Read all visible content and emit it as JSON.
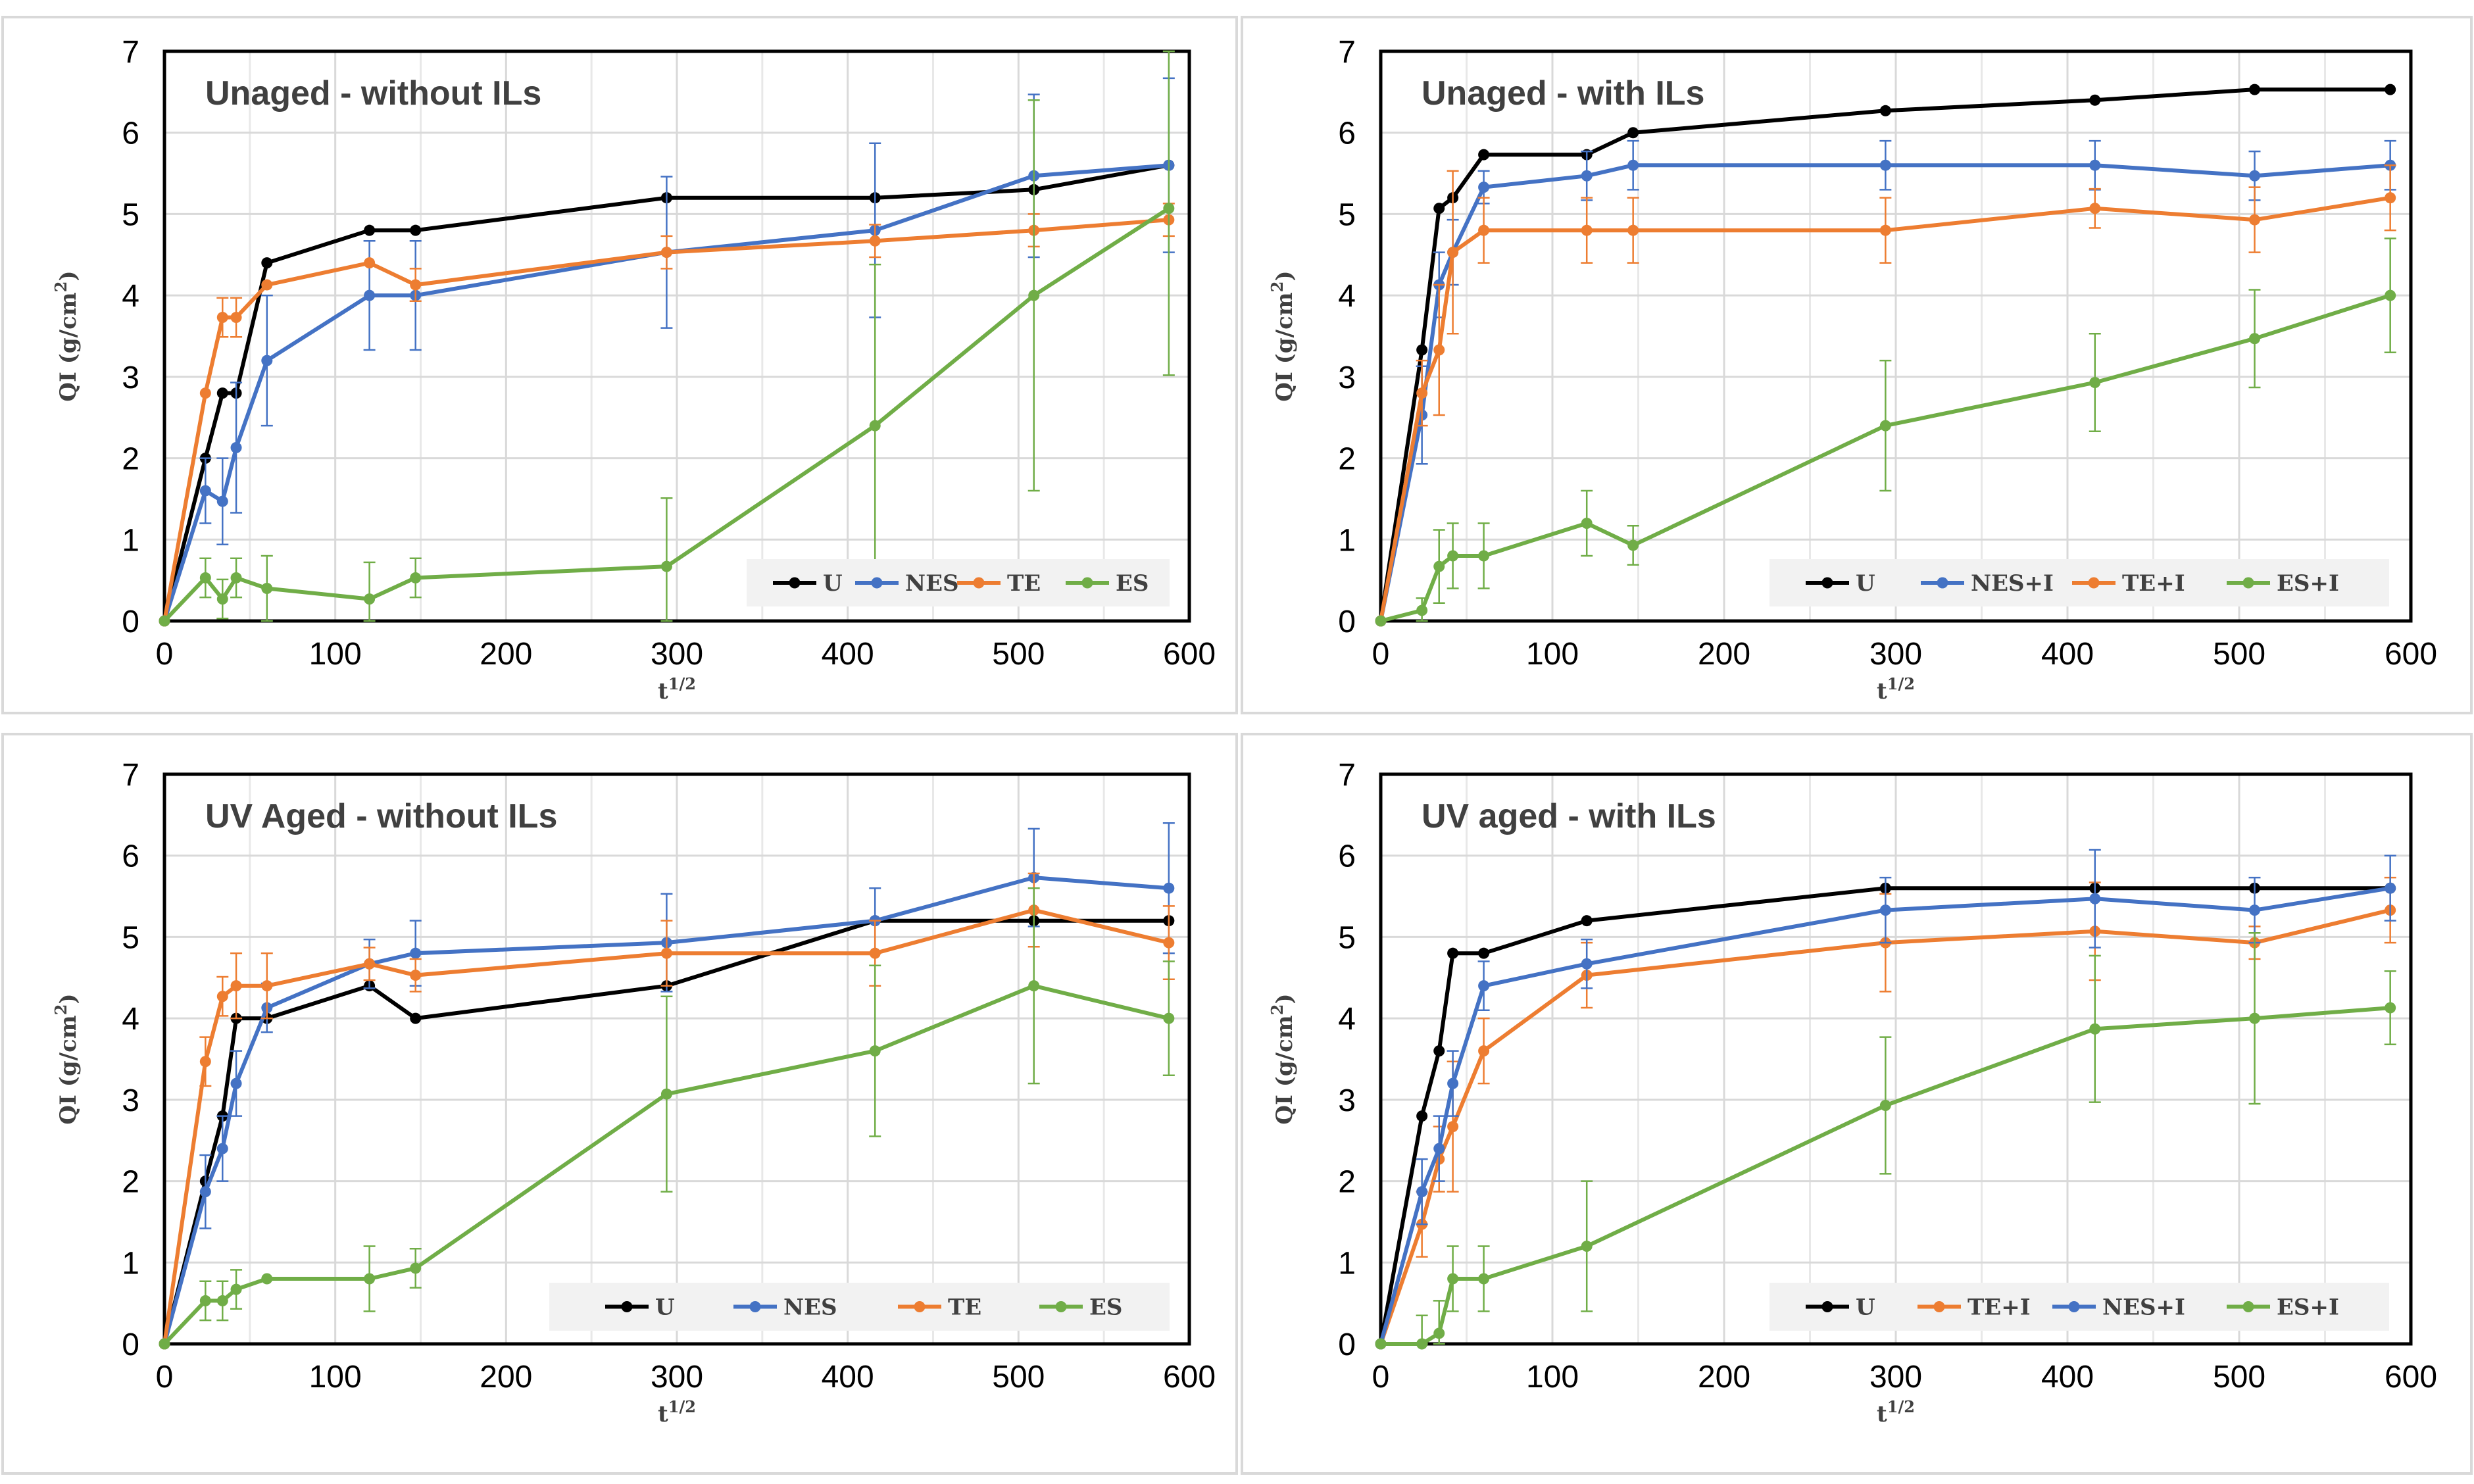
{
  "chart_data": [
    {
      "type": "line",
      "title": "Unaged - without ILs",
      "xlabel": "t",
      "xlabel_sup": "1/2",
      "ylabel": "QI (g/cm",
      "ylabel_sup": "2",
      "ylabel_end": ")",
      "xlim": [
        0,
        600
      ],
      "ylim": [
        0,
        7
      ],
      "x_ticks": [
        "0",
        "100",
        "200",
        "300",
        "400",
        "500",
        "600"
      ],
      "y_ticks": [
        "0",
        "1",
        "2",
        "3",
        "4",
        "5",
        "6",
        "7"
      ],
      "legend_position": "bottom-right",
      "series": [
        {
          "name": "U",
          "color": "#000000",
          "x": [
            0,
            24,
            34,
            42,
            60,
            120,
            147,
            294,
            416,
            509,
            588
          ],
          "y": [
            0,
            2.0,
            2.8,
            2.8,
            4.4,
            4.8,
            4.8,
            5.2,
            5.2,
            5.3,
            5.6
          ],
          "err": [
            0,
            0,
            0,
            0,
            0,
            0,
            0,
            0,
            0,
            0,
            0
          ]
        },
        {
          "name": "NES",
          "color": "#4472c4",
          "x": [
            0,
            24,
            34,
            42,
            60,
            120,
            147,
            294,
            416,
            509,
            588
          ],
          "y": [
            0,
            1.6,
            1.47,
            2.13,
            3.2,
            4.0,
            4.0,
            4.53,
            4.8,
            5.47,
            5.6
          ],
          "err": [
            0,
            0.4,
            0.53,
            0.8,
            0.8,
            0.67,
            0.67,
            0.93,
            1.07,
            1.0,
            1.07
          ]
        },
        {
          "name": "TE",
          "color": "#ed7d31",
          "x": [
            0,
            24,
            34,
            42,
            60,
            120,
            147,
            294,
            416,
            509,
            588
          ],
          "y": [
            0,
            2.8,
            3.73,
            3.73,
            4.13,
            4.4,
            4.13,
            4.53,
            4.67,
            4.8,
            4.93
          ],
          "err": [
            0,
            0,
            0.24,
            0.24,
            0,
            0,
            0.2,
            0.2,
            0.2,
            0.2,
            0.2
          ]
        },
        {
          "name": "ES",
          "color": "#70ad47",
          "x": [
            0,
            24,
            34,
            42,
            60,
            120,
            147,
            294,
            416,
            509,
            588
          ],
          "y": [
            0,
            0.53,
            0.27,
            0.53,
            0.4,
            0.27,
            0.53,
            0.67,
            2.4,
            4.0,
            5.07
          ],
          "err": [
            0,
            0.24,
            0.24,
            0.24,
            0.4,
            0.45,
            0.24,
            0.84,
            1.98,
            2.4,
            2.05
          ]
        }
      ]
    },
    {
      "type": "line",
      "title": "Unaged - with ILs",
      "xlabel": "t",
      "xlabel_sup": "1/2",
      "ylabel": "QI (g/cm",
      "ylabel_sup": "2",
      "ylabel_end": ")",
      "xlim": [
        0,
        600
      ],
      "ylim": [
        0,
        7
      ],
      "x_ticks": [
        "0",
        "100",
        "200",
        "300",
        "400",
        "500",
        "600"
      ],
      "y_ticks": [
        "0",
        "1",
        "2",
        "3",
        "4",
        "5",
        "6",
        "7"
      ],
      "legend_position": "bottom-right",
      "series": [
        {
          "name": "U",
          "color": "#000000",
          "x": [
            0,
            24,
            34,
            42,
            60,
            120,
            147,
            294,
            416,
            509,
            588
          ],
          "y": [
            0,
            3.33,
            5.07,
            5.2,
            5.73,
            5.73,
            6.0,
            6.27,
            6.4,
            6.53,
            6.53
          ],
          "err": [
            0,
            0,
            0,
            0,
            0,
            0,
            0,
            0,
            0,
            0,
            0
          ]
        },
        {
          "name": "NES+I",
          "color": "#4472c4",
          "x": [
            0,
            24,
            34,
            42,
            60,
            120,
            147,
            294,
            416,
            509,
            588
          ],
          "y": [
            0,
            2.53,
            4.13,
            4.53,
            5.33,
            5.47,
            5.6,
            5.6,
            5.6,
            5.47,
            5.6
          ],
          "err": [
            0,
            0.6,
            0.4,
            0.4,
            0.2,
            0.3,
            0.3,
            0.3,
            0.3,
            0.3,
            0.3
          ]
        },
        {
          "name": "TE+I",
          "color": "#ed7d31",
          "x": [
            0,
            24,
            34,
            42,
            60,
            120,
            147,
            294,
            416,
            509,
            588
          ],
          "y": [
            0,
            2.8,
            3.33,
            4.53,
            4.8,
            4.8,
            4.8,
            4.8,
            5.07,
            4.93,
            5.2
          ],
          "err": [
            0,
            0.4,
            0.8,
            1.0,
            0.4,
            0.4,
            0.4,
            0.4,
            0.24,
            0.4,
            0.4
          ]
        },
        {
          "name": "ES+I",
          "color": "#70ad47",
          "x": [
            0,
            24,
            34,
            42,
            60,
            120,
            147,
            294,
            416,
            509,
            588
          ],
          "y": [
            0,
            0.13,
            0.67,
            0.8,
            0.8,
            1.2,
            0.93,
            2.4,
            2.93,
            3.47,
            4.0
          ],
          "err": [
            0,
            0.15,
            0.45,
            0.4,
            0.4,
            0.4,
            0.24,
            0.8,
            0.6,
            0.6,
            0.7
          ]
        }
      ]
    },
    {
      "type": "line",
      "title": "UV Aged - without ILs",
      "xlabel": "t",
      "xlabel_sup": "1/2",
      "ylabel": "QI (g/cm",
      "ylabel_sup": "2",
      "ylabel_end": ")",
      "xlim": [
        0,
        600
      ],
      "ylim": [
        0,
        7
      ],
      "x_ticks": [
        "0",
        "100",
        "200",
        "300",
        "400",
        "500",
        "600"
      ],
      "y_ticks": [
        "0",
        "1",
        "2",
        "3",
        "4",
        "5",
        "6",
        "7"
      ],
      "legend_position": "bottom",
      "series": [
        {
          "name": "U",
          "color": "#000000",
          "x": [
            0,
            24,
            34,
            42,
            60,
            120,
            147,
            294,
            416,
            509,
            588
          ],
          "y": [
            0,
            2.0,
            2.8,
            4.0,
            4.0,
            4.4,
            4.0,
            4.4,
            5.2,
            5.2,
            5.2
          ],
          "err": [
            0,
            0,
            0,
            0,
            0,
            0,
            0,
            0,
            0,
            0,
            0
          ]
        },
        {
          "name": "NES",
          "color": "#4472c4",
          "x": [
            0,
            24,
            34,
            42,
            60,
            120,
            147,
            294,
            416,
            509,
            588
          ],
          "y": [
            0,
            1.87,
            2.4,
            3.2,
            4.13,
            4.67,
            4.8,
            4.93,
            5.2,
            5.73,
            5.6
          ],
          "err": [
            0,
            0.45,
            0.4,
            0.4,
            0.3,
            0.3,
            0.4,
            0.6,
            0.4,
            0.6,
            0.8
          ]
        },
        {
          "name": "TE",
          "color": "#ed7d31",
          "x": [
            0,
            24,
            34,
            42,
            60,
            120,
            147,
            294,
            416,
            509,
            588
          ],
          "y": [
            0,
            3.47,
            4.27,
            4.4,
            4.4,
            4.67,
            4.53,
            4.8,
            4.8,
            5.33,
            4.93
          ],
          "err": [
            0,
            0.3,
            0.24,
            0.4,
            0.4,
            0.2,
            0.2,
            0.4,
            0.4,
            0.45,
            0.45
          ]
        },
        {
          "name": "ES",
          "color": "#70ad47",
          "x": [
            0,
            24,
            34,
            42,
            60,
            120,
            147,
            294,
            416,
            509,
            588
          ],
          "y": [
            0,
            0.53,
            0.53,
            0.67,
            0.8,
            0.8,
            0.93,
            3.07,
            3.6,
            4.4,
            4.0
          ],
          "err": [
            0,
            0.24,
            0.24,
            0.24,
            0,
            0.4,
            0.24,
            1.2,
            1.05,
            1.2,
            0.7
          ]
        }
      ]
    },
    {
      "type": "line",
      "title": "UV aged - with ILs",
      "xlabel": "t",
      "xlabel_sup": "1/2",
      "ylabel": "QI (g/cm",
      "ylabel_sup": "2",
      "ylabel_end": ")",
      "xlim": [
        0,
        600
      ],
      "ylim": [
        0,
        7
      ],
      "x_ticks": [
        "0",
        "100",
        "200",
        "300",
        "400",
        "500",
        "600"
      ],
      "y_ticks": [
        "0",
        "1",
        "2",
        "3",
        "4",
        "5",
        "6",
        "7"
      ],
      "legend_position": "bottom-right",
      "series": [
        {
          "name": "U",
          "color": "#000000",
          "x": [
            0,
            24,
            34,
            42,
            60,
            120,
            294,
            416,
            509,
            588
          ],
          "y": [
            0,
            2.8,
            3.6,
            4.8,
            4.8,
            5.2,
            5.6,
            5.6,
            5.6,
            5.6
          ],
          "err": [
            0,
            0,
            0,
            0,
            0,
            0,
            0,
            0,
            0,
            0
          ]
        },
        {
          "name": "TE+I",
          "color": "#ed7d31",
          "x": [
            0,
            24,
            34,
            42,
            60,
            120,
            294,
            416,
            509,
            588
          ],
          "y": [
            0,
            1.47,
            2.27,
            2.67,
            3.6,
            4.53,
            4.93,
            5.07,
            4.93,
            5.33
          ],
          "err": [
            0,
            0.4,
            0.4,
            0.8,
            0.4,
            0.4,
            0.6,
            0.6,
            0.2,
            0.4
          ]
        },
        {
          "name": "NES+I",
          "color": "#4472c4",
          "x": [
            0,
            24,
            34,
            42,
            60,
            120,
            294,
            416,
            509,
            588
          ],
          "y": [
            0,
            1.87,
            2.4,
            3.2,
            4.4,
            4.67,
            5.33,
            5.47,
            5.33,
            5.6
          ],
          "err": [
            0,
            0.4,
            0.4,
            0.4,
            0.3,
            0.3,
            0.4,
            0.6,
            0.4,
            0.4
          ]
        },
        {
          "name": "ES+I",
          "color": "#70ad47",
          "x": [
            0,
            24,
            34,
            42,
            60,
            120,
            294,
            416,
            509,
            588
          ],
          "y": [
            0,
            0,
            0.13,
            0.8,
            0.8,
            1.2,
            2.93,
            3.87,
            4.0,
            4.13
          ],
          "err": [
            0,
            0.35,
            0.4,
            0.4,
            0.4,
            0.8,
            0.84,
            0.9,
            1.05,
            0.45
          ]
        }
      ]
    }
  ]
}
